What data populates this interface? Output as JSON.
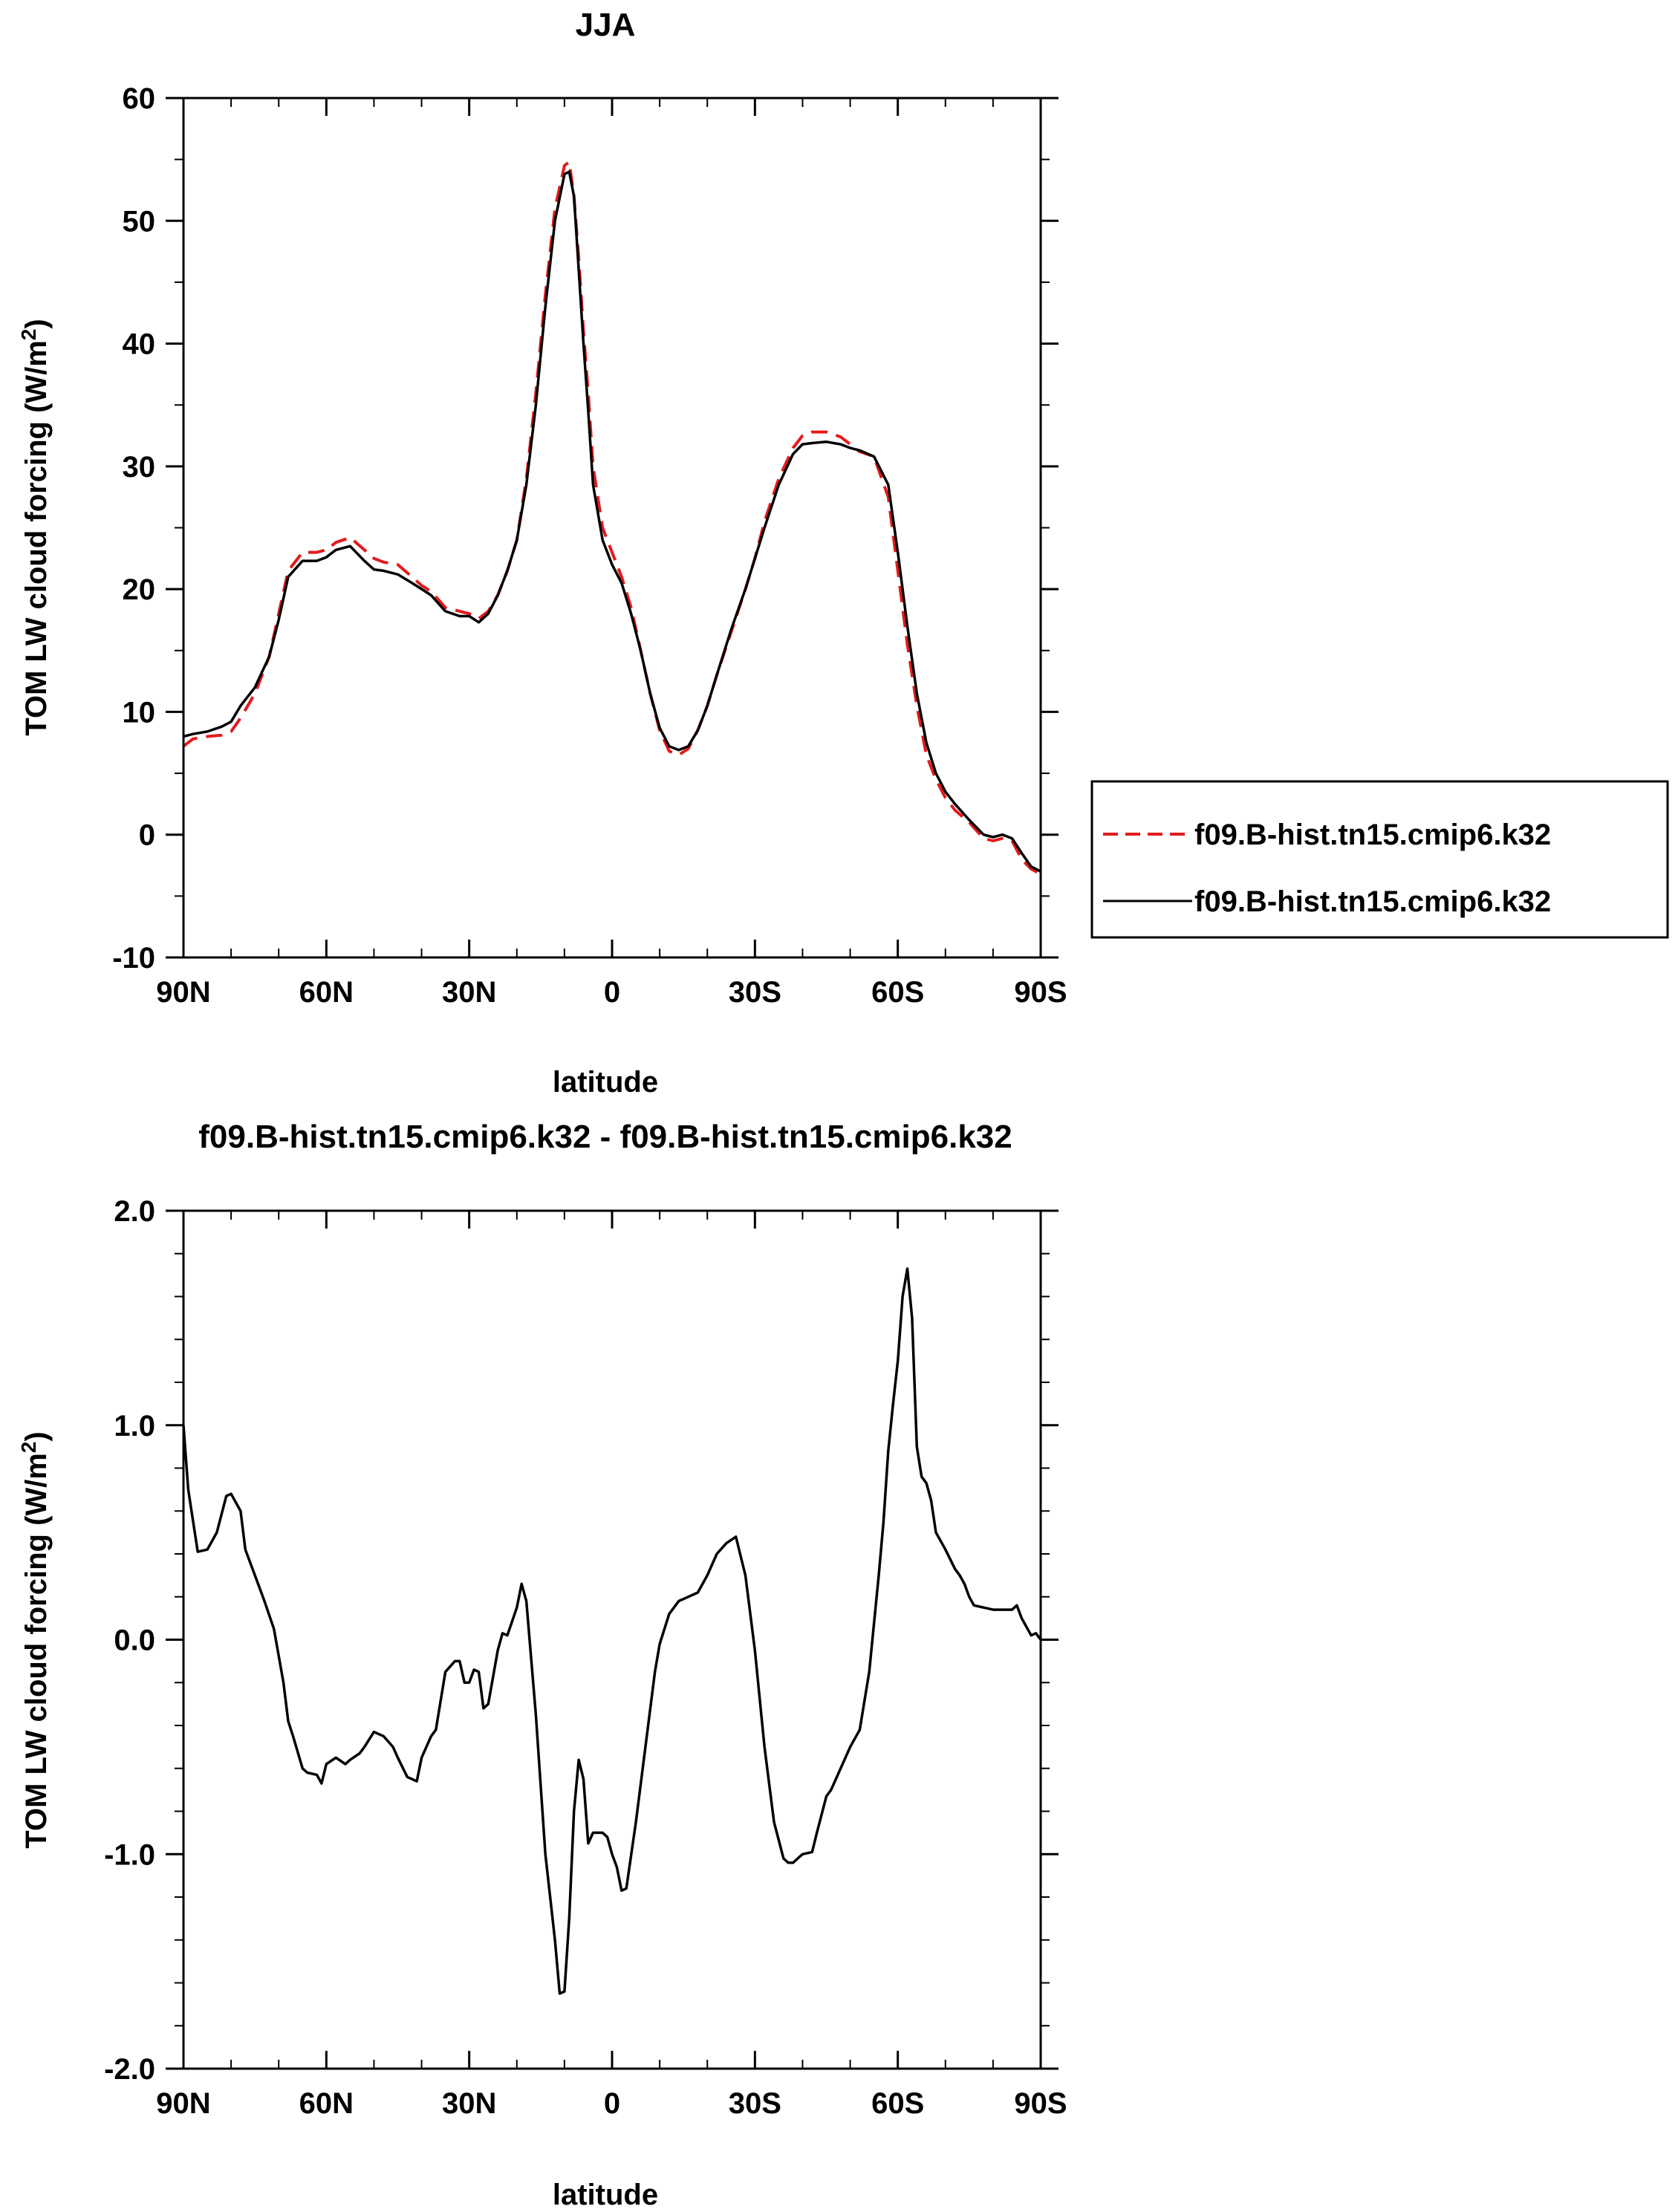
{
  "chart_data": [
    {
      "type": "line",
      "title": "JJA",
      "xlabel": "latitude",
      "ylabel": "TOM LW cloud forcing (W/m",
      "ylabel_sup": "2",
      "ylabel_close": ")",
      "xlim": [
        90,
        -90
      ],
      "ylim": [
        -10,
        60
      ],
      "xticks": [
        90,
        60,
        30,
        0,
        -30,
        -60,
        -90
      ],
      "xtick_labels": [
        "90N",
        "60N",
        "30N",
        "0",
        "30S",
        "60S",
        "90S"
      ],
      "yticks": [
        -10,
        0,
        10,
        20,
        30,
        40,
        50,
        60
      ],
      "ytick_labels": [
        "-10",
        "0",
        "10",
        "20",
        "30",
        "40",
        "50",
        "60"
      ],
      "grid": false,
      "legend_position": "right",
      "series": [
        {
          "name": "f09.B-hist.tn15.cmip6.k32",
          "color": "#e41a1c",
          "dash": "dashed",
          "x": [
            90,
            88,
            85,
            82,
            80,
            78,
            75,
            72,
            70,
            68,
            65,
            62,
            60,
            58,
            55,
            52,
            50,
            48,
            45,
            42,
            40,
            38,
            35,
            32,
            30,
            28,
            26,
            24,
            22,
            20,
            18,
            16,
            14,
            12,
            10,
            9,
            8,
            7,
            6,
            5,
            4,
            2,
            0,
            -2,
            -4,
            -6,
            -8,
            -10,
            -12,
            -14,
            -16,
            -18,
            -20,
            -22,
            -25,
            -28,
            -30,
            -32,
            -35,
            -38,
            -40,
            -42,
            -45,
            -48,
            -50,
            -52,
            -55,
            -58,
            -60,
            -62,
            -64,
            -66,
            -68,
            -70,
            -72,
            -75,
            -78,
            -80,
            -82,
            -84,
            -86,
            -88,
            -90
          ],
          "y": [
            7.2,
            7.8,
            8.0,
            8.1,
            8.4,
            9.5,
            11.5,
            14.5,
            18,
            21.5,
            23,
            23,
            23.2,
            23.8,
            24.2,
            23.2,
            22.5,
            22.2,
            22.0,
            21.0,
            20.3,
            19.8,
            18.5,
            18.2,
            18.0,
            17.6,
            18.2,
            19.5,
            21.5,
            24,
            29,
            36,
            44,
            51,
            54.5,
            54.8,
            52,
            47,
            41,
            36,
            30,
            25,
            23,
            21,
            18.5,
            15,
            11.5,
            8.5,
            6.8,
            6.5,
            7.0,
            8.5,
            10.5,
            13,
            16.5,
            20,
            22.5,
            25.5,
            29,
            31.5,
            32.5,
            32.8,
            32.8,
            32.4,
            31.8,
            31.2,
            30.8,
            27.5,
            21.5,
            15.5,
            10.5,
            6.5,
            4.5,
            3.0,
            2.0,
            1.0,
            -0.3,
            -0.5,
            -0.3,
            -0.5,
            -2.0,
            -2.8,
            -3.2
          ]
        },
        {
          "name": "f09.B-hist.tn15.cmip6.k32",
          "color": "#000000",
          "dash": "solid",
          "x": [
            90,
            88,
            85,
            82,
            80,
            78,
            75,
            72,
            70,
            68,
            65,
            62,
            60,
            58,
            55,
            52,
            50,
            48,
            45,
            42,
            40,
            38,
            35,
            32,
            30,
            28,
            26,
            24,
            22,
            20,
            18,
            16,
            14,
            12,
            10,
            9,
            8,
            7,
            6,
            5,
            4,
            2,
            0,
            -2,
            -4,
            -6,
            -8,
            -10,
            -12,
            -14,
            -16,
            -18,
            -20,
            -22,
            -25,
            -28,
            -30,
            -32,
            -35,
            -38,
            -40,
            -42,
            -45,
            -48,
            -50,
            -52,
            -55,
            -58,
            -60,
            -62,
            -64,
            -66,
            -68,
            -70,
            -72,
            -75,
            -78,
            -80,
            -82,
            -84,
            -86,
            -88,
            -90
          ],
          "y": [
            8.0,
            8.2,
            8.4,
            8.8,
            9.2,
            10.5,
            12,
            14.5,
            17.5,
            21,
            22.3,
            22.3,
            22.6,
            23.2,
            23.5,
            22.3,
            21.6,
            21.5,
            21.2,
            20.5,
            20.0,
            19.5,
            18.2,
            17.8,
            17.8,
            17.3,
            18.0,
            19.5,
            21.5,
            24,
            28.5,
            35,
            43,
            50,
            53.8,
            54,
            52,
            46,
            40,
            34.5,
            28.5,
            24,
            22,
            20.5,
            18,
            15,
            11.5,
            8.7,
            7.2,
            6.9,
            7.2,
            8.5,
            10.5,
            13,
            16.7,
            20,
            22.5,
            25,
            28.5,
            31,
            31.8,
            31.9,
            32.0,
            31.8,
            31.5,
            31.3,
            30.8,
            28.5,
            23,
            17,
            11.5,
            7.5,
            5.0,
            3.5,
            2.5,
            1.2,
            0.0,
            -0.2,
            0.0,
            -0.3,
            -1.5,
            -2.6,
            -3.0
          ]
        }
      ]
    },
    {
      "type": "line",
      "title": "f09.B-hist.tn15.cmip6.k32 - f09.B-hist.tn15.cmip6.k32",
      "xlabel": "latitude",
      "ylabel": "TOM LW cloud forcing (W/m",
      "ylabel_sup": "2",
      "ylabel_close": ")",
      "xlim": [
        90,
        -90
      ],
      "ylim": [
        -2,
        2
      ],
      "xticks": [
        90,
        60,
        30,
        0,
        -30,
        -60,
        -90
      ],
      "xtick_labels": [
        "90N",
        "60N",
        "30N",
        "0",
        "30S",
        "60S",
        "90S"
      ],
      "yticks": [
        -2,
        -1,
        0,
        1,
        2
      ],
      "ytick_labels": [
        "-2.0",
        "-1.0",
        "0.0",
        "1.0",
        "2.0"
      ],
      "grid": false,
      "series": [
        {
          "color": "#000000",
          "dash": "solid",
          "x": [
            90,
            89,
            87,
            85,
            83,
            81,
            80,
            78,
            77,
            75,
            73,
            71,
            69,
            68,
            67,
            65,
            64,
            62,
            61,
            60,
            58,
            56,
            55,
            53,
            52,
            50,
            48,
            46,
            45,
            43,
            41,
            40,
            38,
            37,
            35,
            33,
            32,
            31,
            30,
            29,
            28,
            27,
            26,
            24,
            23,
            22,
            20,
            19,
            18,
            16,
            14,
            12,
            11,
            10,
            9,
            8,
            7,
            6,
            5,
            4,
            3,
            2,
            1,
            0,
            -1,
            -2,
            -3,
            -5,
            -7,
            -9,
            -10,
            -12,
            -14,
            -16,
            -18,
            -20,
            -22,
            -24,
            -26,
            -28,
            -30,
            -32,
            -34,
            -36,
            -37,
            -38,
            -39,
            -40,
            -42,
            -43,
            -45,
            -46,
            -48,
            -50,
            -52,
            -54,
            -56,
            -57,
            -58,
            -59,
            -60,
            -61,
            -62,
            -63,
            -64,
            -65,
            -66,
            -67,
            -68,
            -70,
            -72,
            -73,
            -74,
            -75,
            -76,
            -78,
            -80,
            -82,
            -84,
            -85,
            -86,
            -88,
            -89,
            -90
          ],
          "y": [
            1.0,
            0.7,
            0.41,
            0.42,
            0.5,
            0.67,
            0.68,
            0.6,
            0.42,
            0.3,
            0.18,
            0.05,
            -0.2,
            -0.38,
            -0.45,
            -0.6,
            -0.62,
            -0.63,
            -0.67,
            -0.58,
            -0.55,
            -0.58,
            -0.56,
            -0.53,
            -0.5,
            -0.43,
            -0.45,
            -0.5,
            -0.55,
            -0.64,
            -0.66,
            -0.55,
            -0.45,
            -0.42,
            -0.15,
            -0.1,
            -0.1,
            -0.2,
            -0.2,
            -0.14,
            -0.15,
            -0.32,
            -0.3,
            -0.05,
            0.03,
            0.02,
            0.15,
            0.26,
            0.18,
            -0.35,
            -1.0,
            -1.4,
            -1.65,
            -1.64,
            -1.3,
            -0.8,
            -0.56,
            -0.65,
            -0.95,
            -0.9,
            -0.9,
            -0.9,
            -0.92,
            -1.0,
            -1.06,
            -1.17,
            -1.16,
            -0.85,
            -0.5,
            -0.15,
            -0.02,
            0.12,
            0.18,
            0.2,
            0.22,
            0.3,
            0.4,
            0.45,
            0.48,
            0.3,
            -0.05,
            -0.5,
            -0.85,
            -1.02,
            -1.04,
            -1.04,
            -1.02,
            -1.0,
            -0.99,
            -0.9,
            -0.73,
            -0.7,
            -0.6,
            -0.5,
            -0.42,
            -0.15,
            0.3,
            0.55,
            0.88,
            1.1,
            1.3,
            1.6,
            1.73,
            1.5,
            0.9,
            0.76,
            0.73,
            0.65,
            0.5,
            0.42,
            0.33,
            0.3,
            0.26,
            0.2,
            0.16,
            0.15,
            0.14,
            0.14,
            0.14,
            0.16,
            0.1,
            0.02,
            0.03,
            0.0
          ]
        }
      ]
    }
  ]
}
